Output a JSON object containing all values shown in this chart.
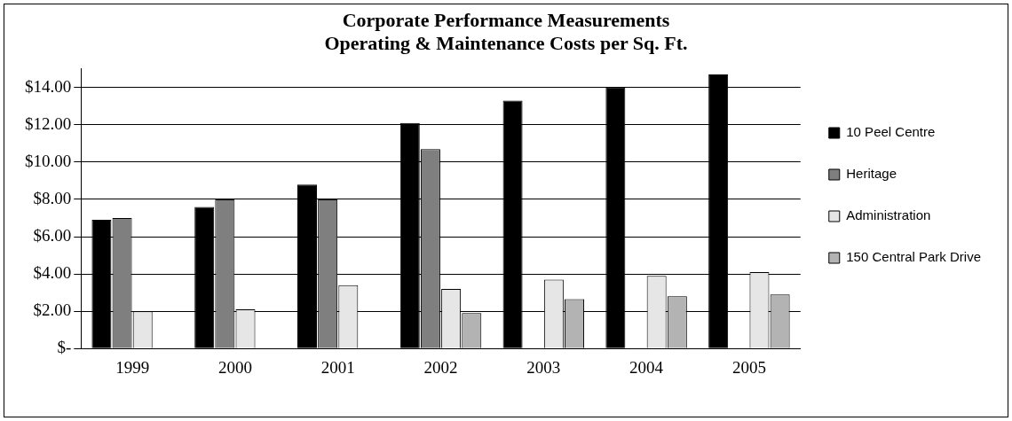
{
  "chart_data": {
    "type": "bar",
    "title": [
      "Corporate Performance Measurements",
      "Operating & Maintenance Costs per Sq. Ft."
    ],
    "categories": [
      "1999",
      "2000",
      "2001",
      "2002",
      "2003",
      "2004",
      "2005"
    ],
    "series": [
      {
        "name": "10 Peel Centre",
        "color": "#000000",
        "values": [
          6.9,
          7.6,
          8.8,
          12.1,
          13.3,
          14.0,
          14.7
        ]
      },
      {
        "name": "Heritage",
        "color": "#7f7f7f",
        "values": [
          7.0,
          8.0,
          8.0,
          10.7,
          0,
          0,
          0
        ]
      },
      {
        "name": "Administration",
        "color": "#e6e6e6",
        "values": [
          2.0,
          2.1,
          3.4,
          3.2,
          3.7,
          3.9,
          4.1
        ]
      },
      {
        "name": "150 Central Park Drive",
        "color": "#b3b3b3",
        "values": [
          null,
          null,
          null,
          1.9,
          2.65,
          2.8,
          2.9
        ]
      }
    ],
    "ylim": [
      0,
      15
    ],
    "yticks": [
      {
        "value": 0,
        "label": "$-"
      },
      {
        "value": 2,
        "label": "$2.00"
      },
      {
        "value": 4,
        "label": "$4.00"
      },
      {
        "value": 6,
        "label": "$6.00"
      },
      {
        "value": 8,
        "label": "$8.00"
      },
      {
        "value": 10,
        "label": "$10.00"
      },
      {
        "value": 12,
        "label": "$12.00"
      },
      {
        "value": 14,
        "label": "$14.00"
      }
    ],
    "grid": "y",
    "legend": "right"
  }
}
